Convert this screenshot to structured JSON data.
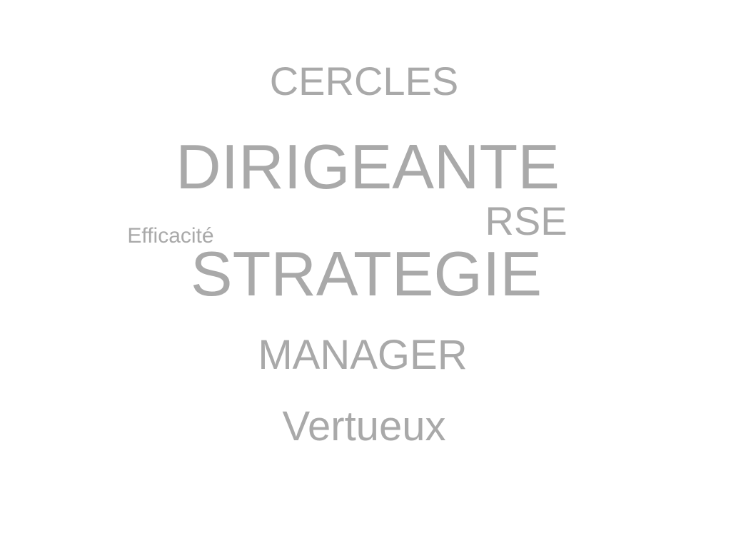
{
  "word_cloud": {
    "color": "#a9a9a9",
    "words": [
      {
        "id": "cercles",
        "text": "CERCLES"
      },
      {
        "id": "dirigeante",
        "text": "DIRIGEANTE"
      },
      {
        "id": "rse",
        "text": "RSE"
      },
      {
        "id": "efficacite",
        "text": "Efficacité"
      },
      {
        "id": "strategie",
        "text": "STRATEGIE"
      },
      {
        "id": "manager",
        "text": "MANAGER"
      },
      {
        "id": "vertueux",
        "text": "Vertueux"
      }
    ]
  }
}
